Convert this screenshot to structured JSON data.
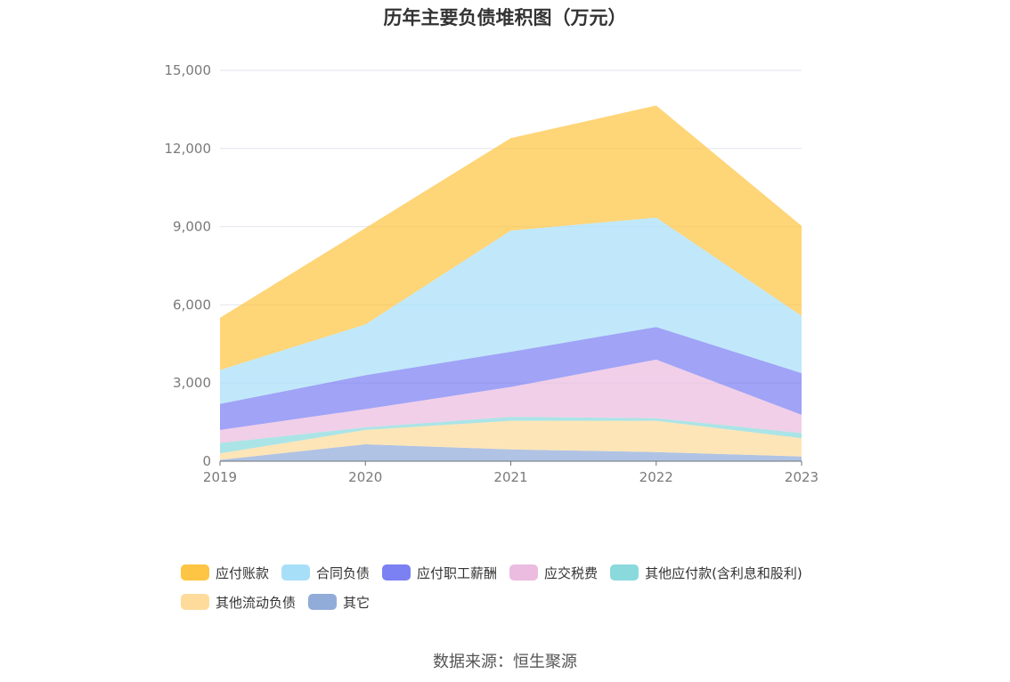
{
  "chart_data": {
    "type": "area",
    "stacked": true,
    "title": "历年主要负债堆积图（万元）",
    "x": [
      "2019",
      "2020",
      "2021",
      "2022",
      "2023"
    ],
    "ylim": [
      0,
      15000
    ],
    "yticks": [
      0,
      3000,
      6000,
      9000,
      12000,
      15000
    ],
    "ytick_labels": [
      "0",
      "3,000",
      "6,000",
      "9,000",
      "12,000",
      "15,000"
    ],
    "grid": true,
    "legend_position": "bottom",
    "series": [
      {
        "name": "其它",
        "color": "#91acd9",
        "values": [
          50,
          650,
          450,
          350,
          180
        ]
      },
      {
        "name": "其他流动负债",
        "color": "#fedb9b",
        "values": [
          250,
          550,
          1100,
          1200,
          700
        ]
      },
      {
        "name": "其他应付款(含利息和股利)",
        "color": "#8ad9dd",
        "values": [
          400,
          100,
          150,
          100,
          200
        ]
      },
      {
        "name": "应交税费",
        "color": "#ebbcdf",
        "values": [
          500,
          700,
          1150,
          2250,
          700
        ]
      },
      {
        "name": "应付职工薪酬",
        "color": "#7b80f3",
        "values": [
          1000,
          1300,
          1350,
          1250,
          1600
        ]
      },
      {
        "name": "合同负债",
        "color": "#a8dff8",
        "values": [
          1300,
          1950,
          4650,
          4200,
          2200
        ]
      },
      {
        "name": "应付账款",
        "color": "#fdc543",
        "values": [
          2000,
          3700,
          3550,
          4300,
          3450
        ]
      }
    ],
    "legend_order": [
      "应付账款",
      "合同负债",
      "应付职工薪酬",
      "应交税费",
      "其他应付款(含利息和股利)",
      "其他流动负债",
      "其它"
    ]
  },
  "footer": {
    "source": "数据来源：恒生聚源"
  }
}
